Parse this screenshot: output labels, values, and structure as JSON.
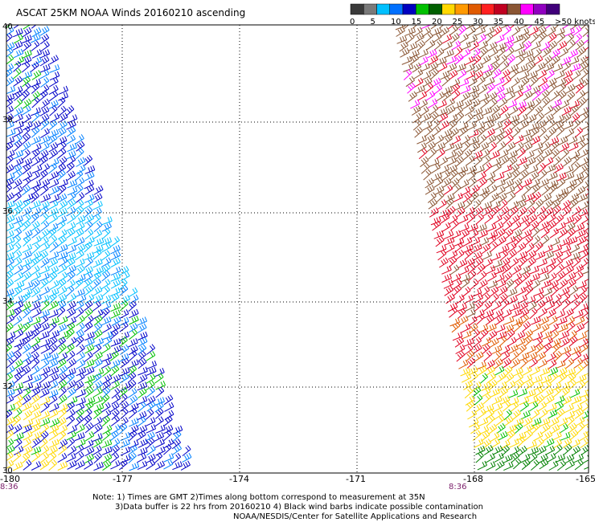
{
  "title": "ASCAT 25KM NOAA Winds 20160210 ascending",
  "legend": {
    "colors": [
      "#3a3a3a",
      "#7a7a7a",
      "#00c0ff",
      "#0070ff",
      "#0000c0",
      "#00c000",
      "#006000",
      "#ffd800",
      "#ff9900",
      "#e05a00",
      "#ff2020",
      "#c00020",
      "#8a5533",
      "#ff00ff",
      "#9000c0",
      "#40007a"
    ],
    "labels": [
      "0",
      "5",
      "10",
      "15",
      "20",
      "25",
      "30",
      "35",
      "40",
      "45",
      ">50 knots"
    ]
  },
  "map": {
    "lat_labels": [
      "40",
      "38",
      "36",
      "34",
      "32",
      "30"
    ],
    "lon_labels": [
      "-180",
      "-177",
      "-174",
      "-171",
      "-168",
      "-165"
    ],
    "time_labels": [
      "8:36",
      "8:36"
    ]
  },
  "footnote": {
    "line1": "Note: 1) Times are GMT 2)Times along bottom correspond to measurement at 35N",
    "line2": "3)Data buffer is 22 hrs from 20160210 4) Black wind barbs indicate possible contamination",
    "credit": "NOAA/NESDIS/Center for Satellite Applications and Research"
  }
}
